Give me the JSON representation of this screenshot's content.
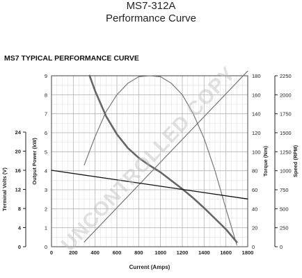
{
  "header": {
    "model": "MS7-312A",
    "subtitle": "Performance Curve"
  },
  "watermark": "UNCONTROLLED COPY",
  "chart_data": {
    "type": "line",
    "title": "MS7 TYPICAL PERFORMANCE CURVE",
    "xlabel": "Current (Amps)",
    "xlim": [
      0,
      1800
    ],
    "x_ticks": [
      0,
      200,
      400,
      600,
      800,
      1000,
      1200,
      1400,
      1600,
      1800
    ],
    "grid": true,
    "axes": [
      {
        "id": "volts",
        "label": "Terminal Volts (V)",
        "side": "left-outer",
        "lim": [
          0,
          24
        ],
        "ticks": [
          0,
          4,
          8,
          12,
          16,
          20,
          24
        ]
      },
      {
        "id": "power",
        "label": "Output Power (kW)",
        "side": "left-inner",
        "lim": [
          0,
          9
        ],
        "ticks": [
          0,
          1,
          2,
          3,
          4,
          5,
          6,
          7,
          8,
          9
        ]
      },
      {
        "id": "torque",
        "label": "Torque (Nm)",
        "side": "right-inner",
        "lim": [
          0,
          180
        ],
        "ticks": [
          0,
          20,
          40,
          60,
          80,
          100,
          120,
          140,
          160,
          180
        ]
      },
      {
        "id": "speed",
        "label": "Speed (RPM)",
        "side": "right-outer",
        "lim": [
          0,
          2250
        ],
        "ticks": [
          0,
          250,
          500,
          750,
          1000,
          1250,
          1500,
          1750,
          2000,
          2250
        ]
      }
    ],
    "series": [
      {
        "axis": "power",
        "color": "#777777",
        "width": 1.2,
        "x": [
          300,
          400,
          500,
          600,
          700,
          800,
          900,
          1000,
          1100,
          1200,
          1300,
          1400,
          1500,
          1600,
          1700
        ],
        "y": [
          4.3,
          5.8,
          7.1,
          8.0,
          8.6,
          8.95,
          9.0,
          8.95,
          8.6,
          8.0,
          7.0,
          5.7,
          4.0,
          2.0,
          0.1
        ]
      },
      {
        "axis": "speed",
        "color": "#666666",
        "width": 2.6,
        "x": [
          350,
          400,
          500,
          600,
          700,
          800,
          900,
          1000,
          1100,
          1200,
          1300,
          1400,
          1500,
          1600,
          1700
        ],
        "y": [
          2250,
          2050,
          1720,
          1480,
          1300,
          1170,
          1070,
          980,
          870,
          760,
          640,
          510,
          370,
          230,
          60
        ]
      },
      {
        "axis": "torque",
        "color": "#777777",
        "width": 1.2,
        "x": [
          300,
          1800
        ],
        "y": [
          5,
          185
        ]
      },
      {
        "axis": "volts",
        "color": "#111111",
        "width": 1.3,
        "x": [
          0,
          1800
        ],
        "y": [
          16.0,
          10.0
        ]
      }
    ]
  }
}
